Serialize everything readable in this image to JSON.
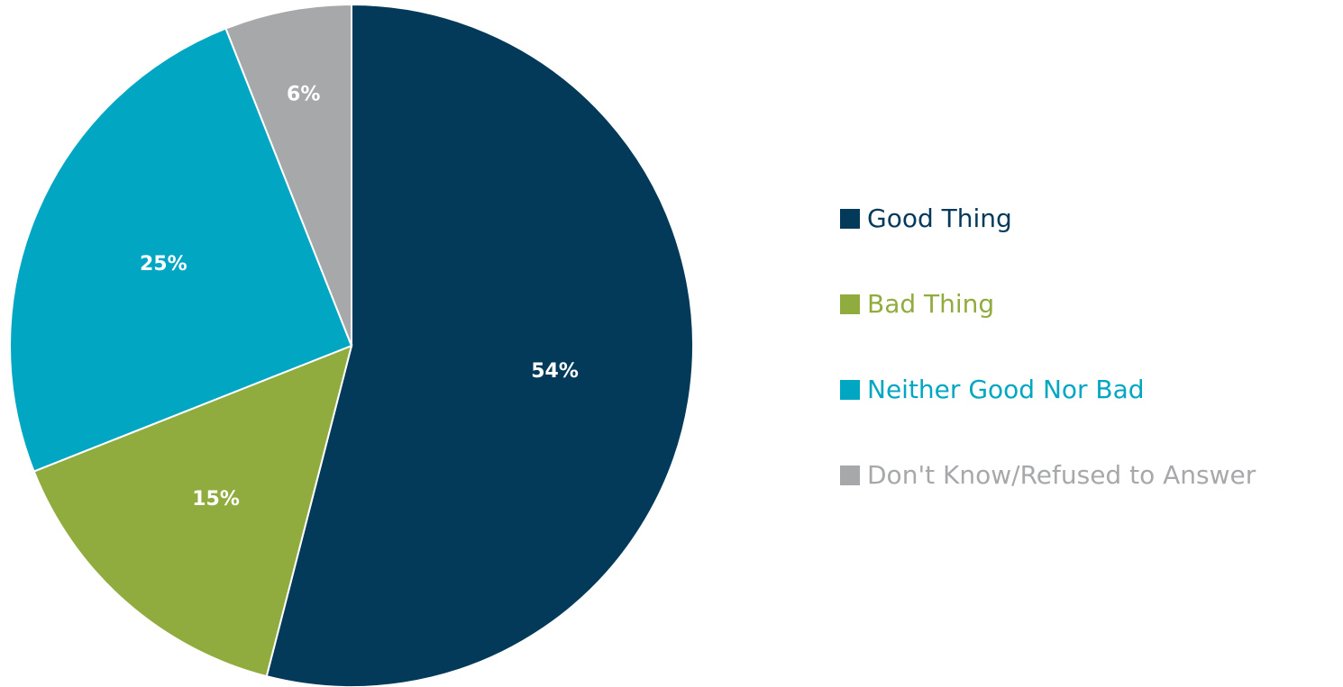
{
  "chart_data": {
    "type": "pie",
    "title": "",
    "slices": [
      {
        "label": "Good Thing",
        "value": 54,
        "display": "54%",
        "color": "#033a5a"
      },
      {
        "label": "Bad Thing",
        "value": 15,
        "display": "15%",
        "color": "#91ac3e"
      },
      {
        "label": "Neither Good Nor Bad",
        "value": 25,
        "display": "25%",
        "color": "#00a6c2"
      },
      {
        "label": "Don't Know/Refused to Answer",
        "value": 6,
        "display": "6%",
        "color": "#a7a8aa"
      }
    ],
    "start_angle": "12 o'clock",
    "direction": "clockwise",
    "legend_position": "right"
  }
}
